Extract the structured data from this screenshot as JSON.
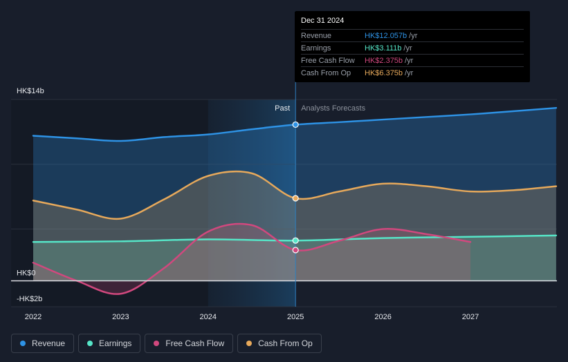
{
  "chart_data": {
    "type": "area",
    "x_ticks": [
      "2022",
      "2023",
      "2024",
      "2025",
      "2026",
      "2027"
    ],
    "y_tick_labels": [
      {
        "label": "HK$14b",
        "value": 14
      },
      {
        "label": "HK$0",
        "value": 0
      },
      {
        "label": "-HK$2b",
        "value": -2
      }
    ],
    "ylim": [
      -2,
      14
    ],
    "xlim": [
      2021.8,
      2027.98
    ],
    "divider_x": 2025,
    "past_label": "Past",
    "forecast_label": "Analysts Forecasts",
    "series": [
      {
        "name": "Revenue",
        "color": "#2e93e6",
        "fill": true,
        "points": [
          [
            2022,
            11.2
          ],
          [
            2022.5,
            11.0
          ],
          [
            2023,
            10.8
          ],
          [
            2023.5,
            11.1
          ],
          [
            2024,
            11.3
          ],
          [
            2024.5,
            11.7
          ],
          [
            2025,
            12.057
          ],
          [
            2025.5,
            12.25
          ],
          [
            2026,
            12.45
          ],
          [
            2026.5,
            12.65
          ],
          [
            2027,
            12.85
          ],
          [
            2027.5,
            13.1
          ],
          [
            2027.98,
            13.35
          ]
        ]
      },
      {
        "name": "Earnings",
        "color": "#56e6c8",
        "fill": true,
        "points": [
          [
            2022,
            3.0
          ],
          [
            2023,
            3.05
          ],
          [
            2024,
            3.2
          ],
          [
            2025,
            3.111
          ],
          [
            2026,
            3.3
          ],
          [
            2027,
            3.4
          ],
          [
            2027.98,
            3.5
          ]
        ]
      },
      {
        "name": "Free Cash Flow",
        "color": "#d1487e",
        "fill": true,
        "points": [
          [
            2022,
            1.4
          ],
          [
            2022.5,
            0.0
          ],
          [
            2023,
            -1.0
          ],
          [
            2023.5,
            1.0
          ],
          [
            2024,
            3.8
          ],
          [
            2024.5,
            4.3
          ],
          [
            2025,
            2.375
          ],
          [
            2025.5,
            3.1
          ],
          [
            2026,
            4.0
          ],
          [
            2026.5,
            3.6
          ],
          [
            2027,
            3.0
          ]
        ]
      },
      {
        "name": "Cash From Op",
        "color": "#e7a95b",
        "fill": true,
        "points": [
          [
            2022,
            6.2
          ],
          [
            2022.5,
            5.5
          ],
          [
            2023,
            4.8
          ],
          [
            2023.5,
            6.3
          ],
          [
            2024,
            8.1
          ],
          [
            2024.5,
            8.3
          ],
          [
            2025,
            6.375
          ],
          [
            2025.5,
            6.9
          ],
          [
            2026,
            7.5
          ],
          [
            2026.5,
            7.3
          ],
          [
            2027,
            6.9
          ],
          [
            2027.5,
            7.0
          ],
          [
            2027.98,
            7.3
          ]
        ]
      }
    ],
    "tooltip": {
      "date": "Dec 31 2024",
      "rows": [
        {
          "label": "Revenue",
          "value": "HK$12.057b",
          "unit": "/yr",
          "color": "#2e93e6"
        },
        {
          "label": "Earnings",
          "value": "HK$3.111b",
          "unit": "/yr",
          "color": "#56e6c8"
        },
        {
          "label": "Free Cash Flow",
          "value": "HK$2.375b",
          "unit": "/yr",
          "color": "#d1487e"
        },
        {
          "label": "Cash From Op",
          "value": "HK$6.375b",
          "unit": "/yr",
          "color": "#e7a95b"
        }
      ]
    }
  },
  "legend": [
    {
      "label": "Revenue",
      "color": "#2e93e6"
    },
    {
      "label": "Earnings",
      "color": "#56e6c8"
    },
    {
      "label": "Free Cash Flow",
      "color": "#d1487e"
    },
    {
      "label": "Cash From Op",
      "color": "#e7a95b"
    }
  ]
}
